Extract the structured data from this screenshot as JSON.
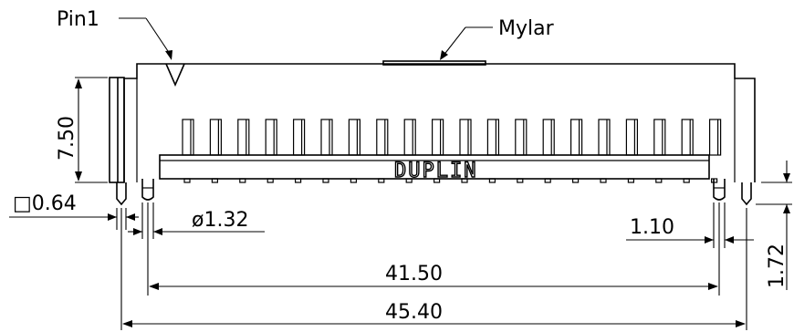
{
  "callouts": {
    "pin1": "Pin1",
    "mylar": "Mylar",
    "brand": "DUPLIN"
  },
  "dimensions": {
    "height": "7.50",
    "square_pin": "□0.64",
    "hole_diameter": "ø1.32",
    "offset": "1.10",
    "pin_length": "1.72",
    "pitch_span": "41.50",
    "overall_width": "45.40"
  },
  "pin_count": 20
}
